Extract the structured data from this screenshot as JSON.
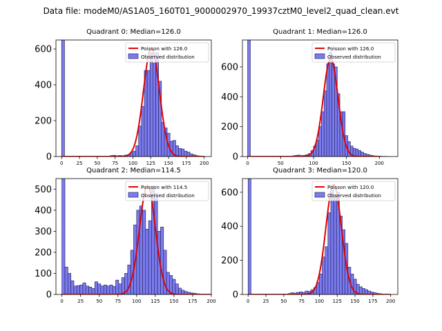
{
  "suptitle": "Data file: modeM0/AS1A05_160T01_9000002970_19937cztM0_level2_quad_clean.evt",
  "legend_observed": "Observed distribution",
  "colors": {
    "bar_fill": "#7b7bef",
    "bar_edge": "#2a2a66",
    "curve": "#e00000"
  },
  "chart_data": [
    {
      "type": "bar",
      "title": "Quadrant 0: Median=126.0",
      "poisson_label": "Poisson with 126.0",
      "mean": 126.0,
      "xlim": [
        -8,
        210
      ],
      "ylim": [
        0,
        650
      ],
      "xticks": [
        0,
        25,
        50,
        75,
        100,
        125,
        150,
        175,
        200
      ],
      "yticks": [
        0,
        200,
        400,
        600
      ],
      "bin_width": 4,
      "bins": [
        [
          0,
          650
        ],
        [
          68,
          5
        ],
        [
          72,
          7
        ],
        [
          76,
          4
        ],
        [
          80,
          6
        ],
        [
          84,
          4
        ],
        [
          88,
          8
        ],
        [
          92,
          10
        ],
        [
          96,
          22
        ],
        [
          100,
          30
        ],
        [
          104,
          60
        ],
        [
          108,
          170
        ],
        [
          112,
          280
        ],
        [
          116,
          480
        ],
        [
          120,
          480
        ],
        [
          124,
          580
        ],
        [
          128,
          520
        ],
        [
          132,
          580
        ],
        [
          136,
          420
        ],
        [
          140,
          190
        ],
        [
          144,
          160
        ],
        [
          148,
          130
        ],
        [
          152,
          85
        ],
        [
          156,
          90
        ],
        [
          160,
          60
        ],
        [
          164,
          45
        ],
        [
          168,
          42
        ],
        [
          172,
          30
        ],
        [
          176,
          25
        ],
        [
          180,
          15
        ],
        [
          184,
          10
        ],
        [
          188,
          5
        ],
        [
          192,
          3
        ],
        [
          196,
          2
        ]
      ],
      "poisson_peak": 605
    },
    {
      "type": "bar",
      "title": "Quadrant 1: Median=126.0",
      "poisson_label": "Poisson with 126.0",
      "mean": 126.0,
      "xlim": [
        -8,
        228
      ],
      "ylim": [
        0,
        780
      ],
      "xticks": [
        0,
        50,
        100,
        150,
        200
      ],
      "yticks": [
        0,
        200,
        400,
        600
      ],
      "bin_width": 4,
      "bins": [
        [
          0,
          780
        ],
        [
          68,
          5
        ],
        [
          72,
          8
        ],
        [
          76,
          10
        ],
        [
          80,
          6
        ],
        [
          84,
          8
        ],
        [
          88,
          12
        ],
        [
          92,
          20
        ],
        [
          96,
          40
        ],
        [
          100,
          70
        ],
        [
          104,
          110
        ],
        [
          108,
          200
        ],
        [
          112,
          300
        ],
        [
          116,
          440
        ],
        [
          120,
          620
        ],
        [
          124,
          700
        ],
        [
          128,
          620
        ],
        [
          132,
          600
        ],
        [
          136,
          420
        ],
        [
          140,
          300
        ],
        [
          144,
          300
        ],
        [
          148,
          140
        ],
        [
          152,
          100
        ],
        [
          156,
          70
        ],
        [
          160,
          55
        ],
        [
          164,
          50
        ],
        [
          168,
          40
        ],
        [
          172,
          30
        ],
        [
          176,
          20
        ],
        [
          180,
          15
        ],
        [
          184,
          10
        ],
        [
          188,
          6
        ],
        [
          192,
          4
        ],
        [
          196,
          3
        ],
        [
          200,
          2
        ],
        [
          204,
          1
        ],
        [
          208,
          1
        ]
      ],
      "poisson_peak": 655
    },
    {
      "type": "bar",
      "title": "Quadrant 2: Median=114.5",
      "poisson_label": "Poisson with 114.5",
      "mean": 114.5,
      "xlim": [
        -8,
        200
      ],
      "ylim": [
        0,
        550
      ],
      "xticks": [
        0,
        25,
        50,
        75,
        100,
        125,
        150,
        175,
        200
      ],
      "yticks": [
        0,
        100,
        200,
        300,
        400,
        500
      ],
      "bin_width": 4,
      "bins": [
        [
          0,
          550
        ],
        [
          4,
          130
        ],
        [
          8,
          100
        ],
        [
          12,
          65
        ],
        [
          16,
          40
        ],
        [
          20,
          42
        ],
        [
          24,
          45
        ],
        [
          28,
          55
        ],
        [
          32,
          40
        ],
        [
          36,
          35
        ],
        [
          40,
          28
        ],
        [
          44,
          60
        ],
        [
          48,
          50
        ],
        [
          52,
          40
        ],
        [
          56,
          45
        ],
        [
          60,
          40
        ],
        [
          64,
          45
        ],
        [
          68,
          38
        ],
        [
          72,
          68
        ],
        [
          76,
          50
        ],
        [
          80,
          80
        ],
        [
          84,
          100
        ],
        [
          88,
          140
        ],
        [
          92,
          210
        ],
        [
          96,
          330
        ],
        [
          100,
          400
        ],
        [
          104,
          420
        ],
        [
          108,
          400
        ],
        [
          112,
          310
        ],
        [
          116,
          350
        ],
        [
          120,
          515
        ],
        [
          124,
          480
        ],
        [
          128,
          300
        ],
        [
          132,
          320
        ],
        [
          136,
          210
        ],
        [
          140,
          105
        ],
        [
          144,
          90
        ],
        [
          148,
          72
        ],
        [
          152,
          50
        ],
        [
          156,
          30
        ],
        [
          160,
          20
        ],
        [
          164,
          14
        ],
        [
          168,
          10
        ],
        [
          172,
          7
        ],
        [
          176,
          5
        ],
        [
          180,
          3
        ]
      ],
      "poisson_peak": 515
    },
    {
      "type": "bar",
      "title": "Quadrant 3: Median=120.0",
      "poisson_label": "Poisson with 120.0",
      "mean": 120.0,
      "xlim": [
        -8,
        210
      ],
      "ylim": [
        0,
        680
      ],
      "xticks": [
        0,
        25,
        50,
        75,
        100,
        125,
        150,
        175,
        200
      ],
      "yticks": [
        0,
        200,
        400,
        600
      ],
      "bin_width": 4,
      "bins": [
        [
          0,
          680
        ],
        [
          56,
          5
        ],
        [
          60,
          10
        ],
        [
          64,
          8
        ],
        [
          68,
          12
        ],
        [
          72,
          15
        ],
        [
          76,
          12
        ],
        [
          80,
          20
        ],
        [
          84,
          18
        ],
        [
          88,
          28
        ],
        [
          92,
          40
        ],
        [
          96,
          70
        ],
        [
          100,
          120
        ],
        [
          104,
          220
        ],
        [
          108,
          280
        ],
        [
          112,
          480
        ],
        [
          116,
          640
        ],
        [
          120,
          580
        ],
        [
          124,
          600
        ],
        [
          128,
          460
        ],
        [
          132,
          380
        ],
        [
          136,
          300
        ],
        [
          140,
          160
        ],
        [
          144,
          120
        ],
        [
          148,
          90
        ],
        [
          152,
          60
        ],
        [
          156,
          45
        ],
        [
          160,
          35
        ],
        [
          164,
          28
        ],
        [
          168,
          20
        ],
        [
          172,
          14
        ],
        [
          176,
          10
        ],
        [
          180,
          6
        ],
        [
          184,
          4
        ],
        [
          188,
          2
        ]
      ],
      "poisson_peak": 645
    }
  ]
}
